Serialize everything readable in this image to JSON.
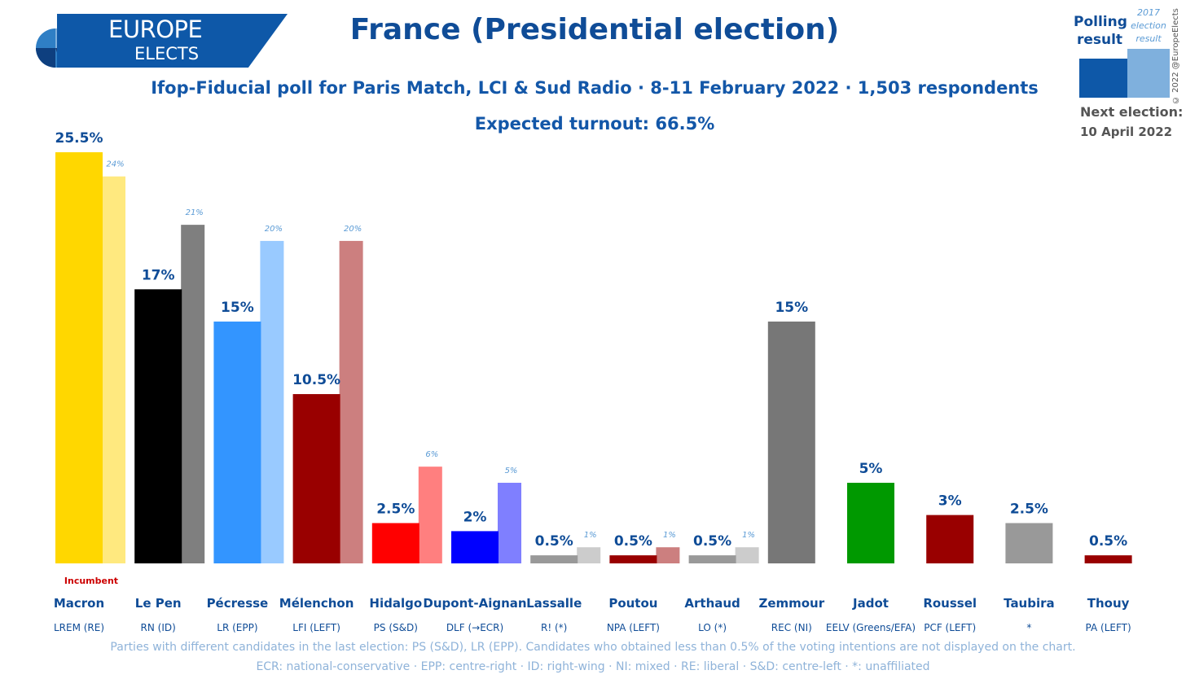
{
  "header": {
    "logo_line1": "EUROPE",
    "logo_line2": "ELECTS",
    "title": "France (Presidential election)",
    "subtitle": "Ifop-Fiducial poll for Paris Match, LCI & Sud Radio · 8-11 February 2022 · 1,503 respondents",
    "turnout": "Expected turnout: 66.5%"
  },
  "legend": {
    "polling_label": "Polling result",
    "previous_label": "2017 election result",
    "next_election_label": "Next election:",
    "next_election_date": "10 April 2022",
    "copyright": "© 2022 @EuropeElects"
  },
  "incumbent_label": "Incumbent",
  "footer": {
    "line1": "Parties with different candidates in the last election: PS (S&D), LR (EPP). Candidates who obtained less than 0.5% of the voting intentions are not displayed on the chart.",
    "line2": "ECR: national-conservative · EPP: centre-right · ID: right-wing · NI: mixed · RE: liberal · S&D: centre-left · *: unaffiliated"
  },
  "chart_data": {
    "type": "bar",
    "title": "France (Presidential election)",
    "unit": "%",
    "ylim": [
      0,
      25.5
    ],
    "categories": [
      "Macron",
      "Le Pen",
      "Pécresse",
      "Mélenchon",
      "Hidalgo",
      "Dupont-Aignan",
      "Lassalle",
      "Poutou",
      "Arthaud",
      "Zemmour",
      "Jadot",
      "Roussel",
      "Taubira",
      "Thouy"
    ],
    "parties": [
      "LREM (RE)",
      "RN (ID)",
      "LR (EPP)",
      "LFI (LEFT)",
      "PS (S&D)",
      "DLF (→ECR)",
      "R! (*)",
      "NPA (LEFT)",
      "LO (*)",
      "REC (NI)",
      "EELV (Greens/EFA)",
      "PCF (LEFT)",
      "*",
      "PA (LEFT)"
    ],
    "series": [
      {
        "name": "Polling result",
        "values": [
          25.5,
          17,
          15,
          10.5,
          2.5,
          2,
          0.5,
          0.5,
          0.5,
          15,
          5,
          3,
          2.5,
          0.5
        ],
        "labels": [
          "25.5%",
          "17%",
          "15%",
          "10.5%",
          "2.5%",
          "2%",
          "0.5%",
          "0.5%",
          "0.5%",
          "15%",
          "5%",
          "3%",
          "2.5%",
          "0.5%"
        ]
      },
      {
        "name": "2017 election result",
        "values": [
          24,
          21,
          20,
          20,
          6,
          5,
          1,
          1,
          1,
          null,
          null,
          null,
          null,
          null
        ],
        "labels": [
          "24%",
          "21%",
          "20%",
          "20%",
          "6%",
          "5%",
          "1%",
          "1%",
          "1%",
          null,
          null,
          null,
          null,
          null
        ]
      }
    ],
    "colors": [
      "#ffd700",
      "#000000",
      "#3395ff",
      "#990000",
      "#ff0000",
      "#0000ff",
      "#999999",
      "#990000",
      "#999999",
      "#777777",
      "#009900",
      "#990000",
      "#999999",
      "#990000"
    ],
    "prev_colors": [
      "#ffe97f",
      "#7f7f7f",
      "#99caff",
      "#cc7f7f",
      "#ff7f7f",
      "#7f7fff",
      "#cccccc",
      "#cc7f7f",
      "#cccccc",
      null,
      null,
      null,
      null,
      null
    ],
    "incumbent_index": 0
  }
}
